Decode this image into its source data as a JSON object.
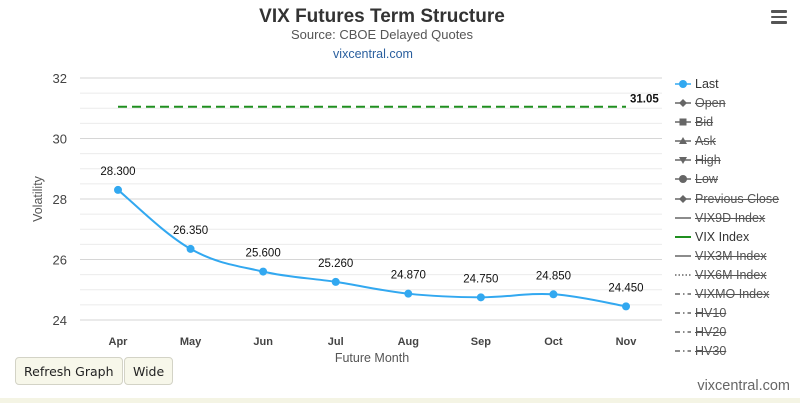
{
  "header": {
    "title": "VIX Futures Term Structure",
    "subtitle": "Source: CBOE Delayed Quotes",
    "site_link": "vixcentral.com"
  },
  "menu": {
    "icon": "hamburger-menu-icon"
  },
  "chart_data": {
    "type": "line",
    "title": "VIX Futures Term Structure",
    "subtitle": "Source: CBOE Delayed Quotes",
    "xlabel": "Future Month",
    "ylabel": "Volatility",
    "categories": [
      "Apr",
      "May",
      "Jun",
      "Jul",
      "Aug",
      "Sep",
      "Oct",
      "Nov"
    ],
    "yticks": [
      24,
      26,
      28,
      30,
      32
    ],
    "ylim": [
      24,
      32
    ],
    "series": [
      {
        "name": "Last",
        "values": [
          28.3,
          26.35,
          25.6,
          25.26,
          24.87,
          24.75,
          24.85,
          24.45
        ],
        "labels": [
          "28.300",
          "26.350",
          "25.600",
          "25.260",
          "24.870",
          "24.750",
          "24.850",
          "24.450"
        ],
        "color": "#32a8f0"
      },
      {
        "name": "VIX Index",
        "value": 31.05,
        "label": "31.05",
        "color": "#1f8f1f"
      }
    ],
    "grid": true,
    "legend_position": "right"
  },
  "legend": {
    "items": [
      {
        "label": "Last",
        "visible": true,
        "symbol": "line-circle"
      },
      {
        "label": "Open",
        "visible": false,
        "symbol": "line-diamond"
      },
      {
        "label": "Bid",
        "visible": false,
        "symbol": "line-square"
      },
      {
        "label": "Ask",
        "visible": false,
        "symbol": "line-triangle"
      },
      {
        "label": "High",
        "visible": false,
        "symbol": "line-triangle-down"
      },
      {
        "label": "Low",
        "visible": false,
        "symbol": "line-circle"
      },
      {
        "label": "Previous Close",
        "visible": false,
        "symbol": "line-diamond"
      },
      {
        "label": "VIX9D Index",
        "visible": false,
        "symbol": "solid-line"
      },
      {
        "label": "VIX Index",
        "visible": true,
        "symbol": "solid-line-green"
      },
      {
        "label": "VIX3M Index",
        "visible": false,
        "symbol": "solid-line"
      },
      {
        "label": "VIX6M Index",
        "visible": false,
        "symbol": "dotted-line"
      },
      {
        "label": "VIXMO Index",
        "visible": false,
        "symbol": "dash-dot-line"
      },
      {
        "label": "HV10",
        "visible": false,
        "symbol": "dash-dot-line"
      },
      {
        "label": "HV20",
        "visible": false,
        "symbol": "dash-dot-line"
      },
      {
        "label": "HV30",
        "visible": false,
        "symbol": "dash-dot-line"
      }
    ]
  },
  "buttons": {
    "refresh_label": "Refresh Graph",
    "wide_label": "Wide"
  },
  "footer": {
    "brand": "vixcentral.com"
  }
}
